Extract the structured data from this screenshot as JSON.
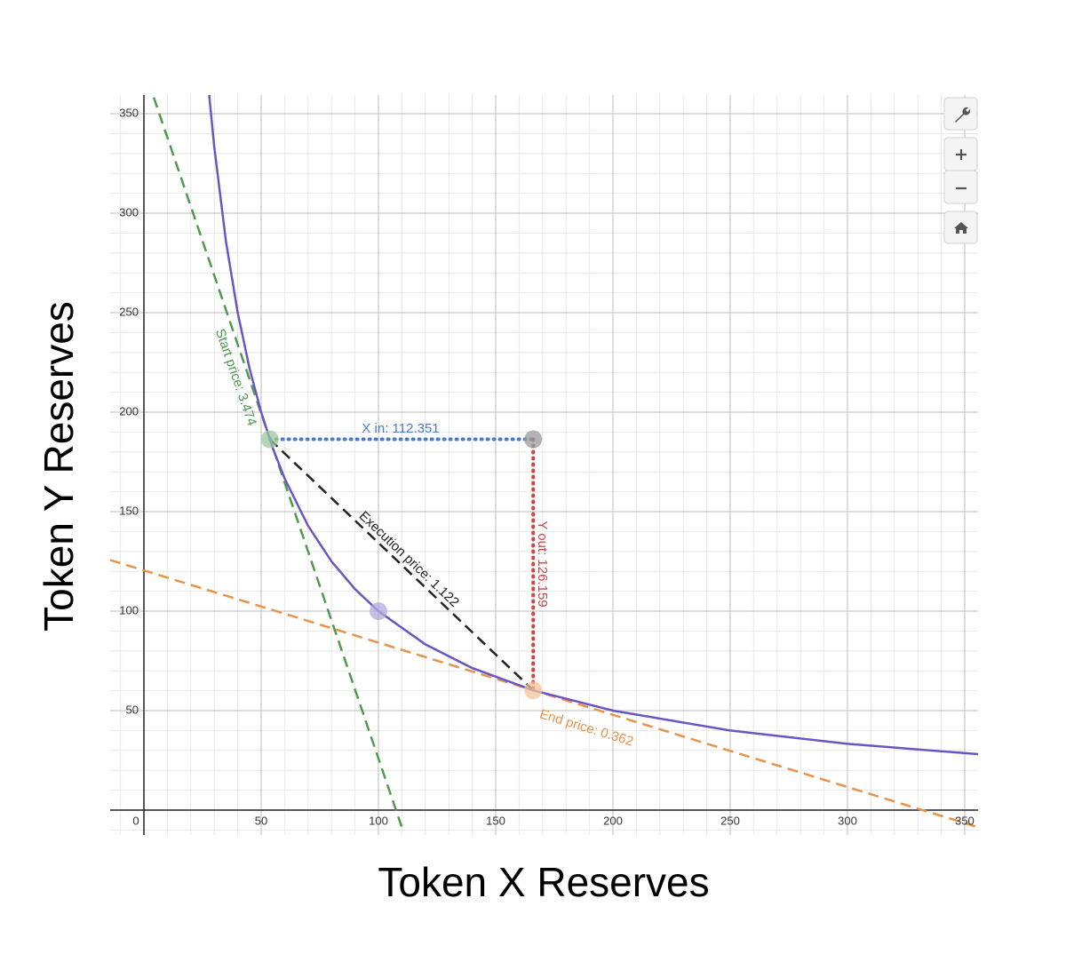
{
  "chart_data": {
    "type": "line",
    "x_label": "Token X Reserves",
    "y_label": "Token Y Reserves",
    "xlim": [
      -14.4,
      355.7
    ],
    "ylim": [
      -12.5,
      359.4
    ],
    "xticks": [
      0,
      50,
      100,
      150,
      200,
      250,
      300,
      350
    ],
    "yticks": [
      50,
      100,
      150,
      200,
      250,
      300,
      350
    ],
    "minor_xticks": [
      -10,
      10,
      20,
      30,
      40,
      60,
      70,
      80,
      90,
      110,
      120,
      130,
      140,
      160,
      170,
      180,
      190,
      210,
      220,
      230,
      240,
      260,
      270,
      280,
      290,
      310,
      320,
      330,
      340
    ],
    "minor_yticks": [
      -10,
      10,
      20,
      30,
      40,
      60,
      70,
      80,
      90,
      110,
      120,
      130,
      140,
      160,
      170,
      180,
      190,
      210,
      220,
      230,
      240,
      260,
      270,
      280,
      290,
      310,
      320,
      330,
      340
    ],
    "grid": true,
    "series": [
      {
        "color": "#4f9a4f",
        "dash": "dashed",
        "x": [
          4.2,
          110.2
        ],
        "values": [
          358.2,
          -9.4
        ]
      },
      {
        "color": "#e8924a",
        "dash": "dashed",
        "x": [
          -14.4,
          355.7
        ],
        "values": [
          125.7,
          -8.6
        ]
      },
      {
        "color": "#222222",
        "dash": "dashed",
        "x": [
          53.65,
          166.0
        ],
        "values": [
          186.4,
          60.24
        ]
      },
      {
        "color": "#4a7cc9",
        "dash": "dotted",
        "x": [
          53.65,
          166.0
        ],
        "values": [
          186.4,
          186.4
        ]
      },
      {
        "color": "#c84848",
        "dash": "dotted",
        "x": [
          166.0,
          166.0
        ],
        "values": [
          186.4,
          60.24
        ]
      },
      {
        "color": "#6b55c4",
        "dash": "solid",
        "x": [
          27.8,
          30,
          35,
          40,
          45,
          50,
          55,
          60,
          70,
          80,
          90,
          100,
          120,
          140,
          166,
          200,
          250,
          300,
          355.7
        ],
        "values": [
          359.7,
          333.3,
          285.7,
          250,
          222.2,
          200,
          181.8,
          166.7,
          142.9,
          125,
          111.1,
          100,
          83.3,
          71.4,
          60.2,
          50,
          40,
          33.3,
          28.1
        ]
      }
    ],
    "points": [
      {
        "x": 53.65,
        "y": 186.4,
        "color": "#9cc89c"
      },
      {
        "x": 100,
        "y": 100,
        "color": "#b3aadc"
      },
      {
        "x": 166.0,
        "y": 186.4,
        "color": "#9a9a9a"
      },
      {
        "x": 166.0,
        "y": 60.24,
        "color": "#f5c19a"
      }
    ],
    "annotations": [
      {
        "text": "Start price: 3.474",
        "color": "#4f9a4f"
      },
      {
        "text": "X in: 112.351",
        "color": "#4a7cc9"
      },
      {
        "text": "Execution price: 1.122",
        "color": "#222222"
      },
      {
        "text": "Y out: 126.159",
        "color": "#c84848"
      },
      {
        "text": "End price: 0.362",
        "color": "#e8924a"
      }
    ]
  }
}
